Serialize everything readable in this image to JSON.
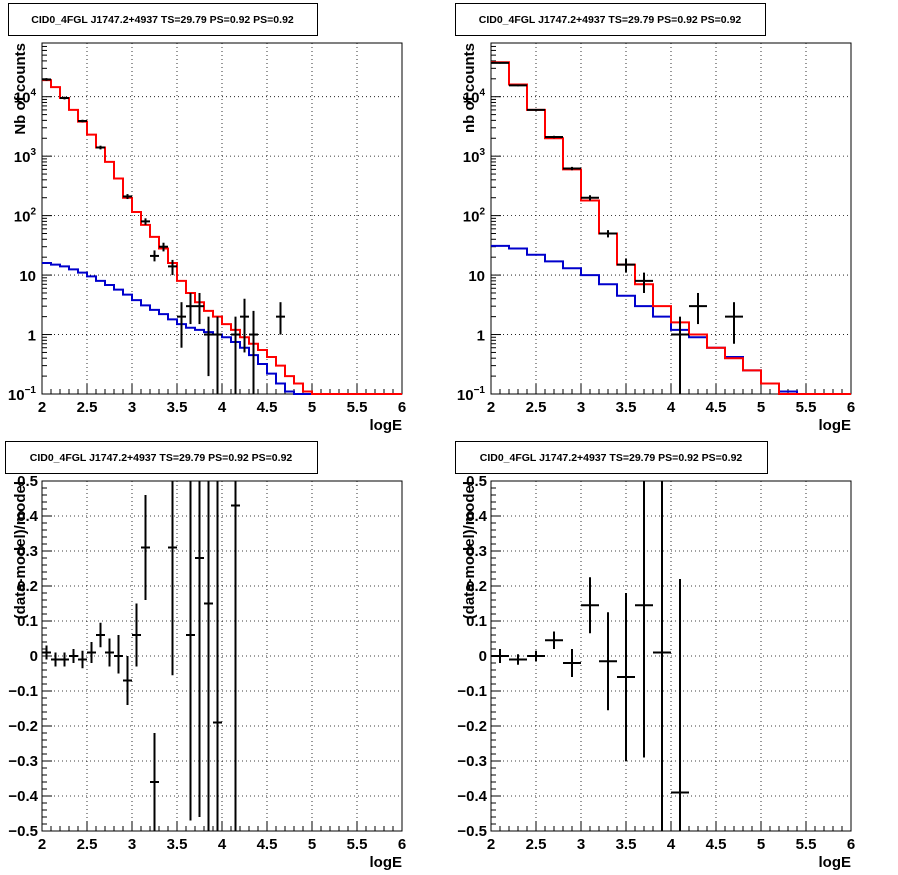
{
  "chart_data": [
    {
      "type": "line",
      "title": "CID0_4FGL J1747.2+4937 TS=29.79 PS=0.92 PS=0.92",
      "xlabel": "logE",
      "ylabel": "Nb of counts",
      "yscale": "log",
      "xlim": [
        2,
        6
      ],
      "ylim": [
        0.1,
        80000
      ],
      "grid": true,
      "xticks": [
        "2",
        "2.5",
        "3",
        "3.5",
        "4",
        "4.5",
        "5",
        "5.5",
        "6"
      ],
      "yticks": [
        {
          "value": 0.1,
          "base": "10",
          "exp": "−1"
        },
        {
          "value": 1,
          "base": "1",
          "exp": ""
        },
        {
          "value": 10,
          "base": "10",
          "exp": ""
        },
        {
          "value": 100,
          "base": "10",
          "exp": "2"
        },
        {
          "value": 1000,
          "base": "10",
          "exp": "3"
        },
        {
          "value": 10000,
          "base": "10",
          "exp": "4"
        }
      ],
      "bin_width": 0.1,
      "series": [
        {
          "color": "#ff0000",
          "step_edges": [
            2.0,
            2.1,
            2.2,
            2.3,
            2.4,
            2.5,
            2.6,
            2.7,
            2.8,
            2.9,
            3.0,
            3.1,
            3.2,
            3.3,
            3.4,
            3.5,
            3.6,
            3.7,
            3.8,
            3.9,
            4.0,
            4.1,
            4.2,
            4.3,
            4.4,
            4.5,
            4.6,
            4.7,
            4.8,
            4.9,
            5.0,
            5.1,
            5.2,
            5.3,
            5.4,
            5.5,
            5.6,
            5.7,
            5.8,
            5.9,
            6.0
          ],
          "values": [
            19000,
            14500,
            9500,
            6000,
            3800,
            2300,
            1400,
            800,
            420,
            200,
            115,
            70,
            44,
            28,
            16,
            8,
            5,
            3.5,
            2.5,
            2.0,
            1.5,
            1.2,
            0.9,
            0.7,
            0.55,
            0.42,
            0.3,
            0.2,
            0.15,
            0.11,
            0.1,
            0.1,
            0.1,
            0.1,
            0.1,
            0.1,
            0.1,
            0.1,
            0.1,
            0.1
          ]
        },
        {
          "color": "#0000cc",
          "step_edges": [
            2.0,
            2.1,
            2.2,
            2.3,
            2.4,
            2.5,
            2.6,
            2.7,
            2.8,
            2.9,
            3.0,
            3.1,
            3.2,
            3.3,
            3.4,
            3.5,
            3.6,
            3.7,
            3.8,
            3.9,
            4.0,
            4.1,
            4.2,
            4.3,
            4.4,
            4.5,
            4.6,
            4.7,
            4.8,
            4.9,
            5.0,
            5.1,
            5.2,
            5.3,
            5.4,
            5.5,
            5.6,
            5.7,
            5.8,
            5.9,
            6.0
          ],
          "values": [
            16,
            15,
            14,
            12.5,
            11,
            9.5,
            8,
            6.8,
            5.7,
            4.7,
            3.8,
            3.1,
            2.6,
            2.2,
            1.8,
            1.5,
            1.3,
            1.2,
            1.1,
            1.0,
            0.9,
            0.75,
            0.6,
            0.45,
            0.32,
            0.22,
            0.15,
            0.11,
            0.1,
            0.1,
            0.1,
            0.1,
            0.1,
            0.1,
            0.1,
            0.1,
            0.1,
            0.1,
            0.1,
            0.1
          ]
        }
      ],
      "points": [
        {
          "x": 2.05,
          "y": 19500,
          "ylow": 18500,
          "yhigh": 20500
        },
        {
          "x": 2.25,
          "y": 9500,
          "ylow": 9000,
          "yhigh": 10000
        },
        {
          "x": 2.45,
          "y": 3900,
          "ylow": 3700,
          "yhigh": 4100
        },
        {
          "x": 2.65,
          "y": 1400,
          "ylow": 1300,
          "yhigh": 1500
        },
        {
          "x": 2.95,
          "y": 210,
          "ylow": 190,
          "yhigh": 230
        },
        {
          "x": 3.15,
          "y": 80,
          "ylow": 70,
          "yhigh": 90
        },
        {
          "x": 3.25,
          "y": 21,
          "ylow": 17,
          "yhigh": 26
        },
        {
          "x": 3.35,
          "y": 30,
          "ylow": 25,
          "yhigh": 35
        },
        {
          "x": 3.45,
          "y": 14,
          "ylow": 10,
          "yhigh": 18
        },
        {
          "x": 3.55,
          "y": 2,
          "ylow": 0.6,
          "yhigh": 3.5
        },
        {
          "x": 3.65,
          "y": 3,
          "ylow": 1.5,
          "yhigh": 5
        },
        {
          "x": 3.75,
          "y": 3,
          "ylow": 1.5,
          "yhigh": 5
        },
        {
          "x": 3.85,
          "y": 1,
          "ylow": 0.2,
          "yhigh": 2
        },
        {
          "x": 3.95,
          "y": 1,
          "ylow": 0.1,
          "yhigh": 2
        },
        {
          "x": 4.15,
          "y": 1,
          "ylow": 0.1,
          "yhigh": 2
        },
        {
          "x": 4.25,
          "y": 2,
          "ylow": 0.5,
          "yhigh": 4
        },
        {
          "x": 4.35,
          "y": 1,
          "ylow": 0.1,
          "yhigh": 2.5
        },
        {
          "x": 4.65,
          "y": 2,
          "ylow": 1,
          "yhigh": 3.5
        }
      ]
    },
    {
      "type": "line",
      "title": "CID0_4FGL J1747.2+4937 TS=29.79 PS=0.92 PS=0.92",
      "xlabel": "logE",
      "ylabel": "nb of counts",
      "yscale": "log",
      "xlim": [
        2,
        6
      ],
      "ylim": [
        0.1,
        80000
      ],
      "grid": true,
      "xticks": [
        "2",
        "2.5",
        "3",
        "3.5",
        "4",
        "4.5",
        "5",
        "5.5",
        "6"
      ],
      "yticks": [
        {
          "value": 0.1,
          "base": "10",
          "exp": "−1"
        },
        {
          "value": 1,
          "base": "1",
          "exp": ""
        },
        {
          "value": 10,
          "base": "10",
          "exp": ""
        },
        {
          "value": 100,
          "base": "10",
          "exp": "2"
        },
        {
          "value": 1000,
          "base": "10",
          "exp": "3"
        },
        {
          "value": 10000,
          "base": "10",
          "exp": "4"
        }
      ],
      "bin_width": 0.2,
      "series": [
        {
          "color": "#ff0000",
          "step_edges": [
            2.0,
            2.2,
            2.4,
            2.6,
            2.8,
            3.0,
            3.2,
            3.4,
            3.6,
            3.8,
            4.0,
            4.2,
            4.4,
            4.6,
            4.8,
            5.0,
            5.2,
            5.4,
            5.6,
            5.8,
            6.0
          ],
          "values": [
            38000,
            16000,
            6000,
            2000,
            600,
            180,
            50,
            15,
            7,
            3,
            1.6,
            1.0,
            0.6,
            0.4,
            0.25,
            0.15,
            0.1,
            0.1,
            0.1,
            0.1
          ]
        },
        {
          "color": "#0000cc",
          "step_edges": [
            2.0,
            2.2,
            2.4,
            2.6,
            2.8,
            3.0,
            3.2,
            3.4,
            3.6,
            3.8,
            4.0,
            4.2,
            4.4,
            4.6,
            4.8,
            5.0,
            5.2,
            5.4,
            5.6,
            5.8,
            6.0
          ],
          "values": [
            31,
            28,
            22,
            17,
            13,
            10,
            7,
            4.5,
            3,
            2,
            1.2,
            0.9,
            0.6,
            0.42,
            0.25,
            0.15,
            0.11,
            0.1,
            0.1,
            0.1
          ]
        }
      ],
      "points": [
        {
          "x": 2.1,
          "y": 37000,
          "ylow": 36000,
          "yhigh": 38000
        },
        {
          "x": 2.3,
          "y": 15500,
          "ylow": 15000,
          "yhigh": 16000
        },
        {
          "x": 2.5,
          "y": 6000,
          "ylow": 5800,
          "yhigh": 6200
        },
        {
          "x": 2.7,
          "y": 2100,
          "ylow": 2000,
          "yhigh": 2200
        },
        {
          "x": 2.9,
          "y": 620,
          "ylow": 580,
          "yhigh": 660
        },
        {
          "x": 3.1,
          "y": 200,
          "ylow": 180,
          "yhigh": 220
        },
        {
          "x": 3.3,
          "y": 50,
          "ylow": 43,
          "yhigh": 57
        },
        {
          "x": 3.5,
          "y": 15,
          "ylow": 11,
          "yhigh": 19
        },
        {
          "x": 3.7,
          "y": 8,
          "ylow": 5,
          "yhigh": 11
        },
        {
          "x": 4.1,
          "y": 1,
          "ylow": 0.1,
          "yhigh": 2
        },
        {
          "x": 4.3,
          "y": 3,
          "ylow": 1.5,
          "yhigh": 5
        },
        {
          "x": 4.7,
          "y": 2,
          "ylow": 0.7,
          "yhigh": 3.5
        }
      ]
    },
    {
      "type": "scatter",
      "title": "CID0_4FGL J1747.2+4937 TS=29.79 PS=0.92 PS=0.92",
      "xlabel": "logE",
      "ylabel": "(data-model)/model",
      "xlim": [
        2,
        6
      ],
      "ylim": [
        -0.5,
        0.5
      ],
      "grid": true,
      "xticks": [
        "2",
        "2.5",
        "3",
        "3.5",
        "4",
        "4.5",
        "5",
        "5.5",
        "6"
      ],
      "yticks": [
        "−0.5",
        "−0.4",
        "−0.3",
        "−0.2",
        "−0.1",
        "0",
        "0.1",
        "0.2",
        "0.3",
        "0.4",
        "0.5"
      ],
      "ytick_values": [
        -0.5,
        -0.4,
        -0.3,
        -0.2,
        -0.1,
        0,
        0.1,
        0.2,
        0.3,
        0.4,
        0.5
      ],
      "bin_width": 0.1,
      "points": [
        {
          "x": 2.05,
          "y": 0.01,
          "ylow": -0.01,
          "yhigh": 0.03
        },
        {
          "x": 2.15,
          "y": -0.01,
          "ylow": -0.03,
          "yhigh": 0.01
        },
        {
          "x": 2.25,
          "y": -0.01,
          "ylow": -0.03,
          "yhigh": 0.01
        },
        {
          "x": 2.35,
          "y": 0.0,
          "ylow": -0.02,
          "yhigh": 0.02
        },
        {
          "x": 2.45,
          "y": -0.01,
          "ylow": -0.035,
          "yhigh": 0.015
        },
        {
          "x": 2.55,
          "y": 0.01,
          "ylow": -0.02,
          "yhigh": 0.04
        },
        {
          "x": 2.65,
          "y": 0.06,
          "ylow": 0.025,
          "yhigh": 0.095
        },
        {
          "x": 2.75,
          "y": 0.01,
          "ylow": -0.03,
          "yhigh": 0.05
        },
        {
          "x": 2.85,
          "y": 0.0,
          "ylow": -0.05,
          "yhigh": 0.06
        },
        {
          "x": 2.95,
          "y": -0.07,
          "ylow": -0.14,
          "yhigh": 0.0
        },
        {
          "x": 3.05,
          "y": 0.06,
          "ylow": -0.03,
          "yhigh": 0.15
        },
        {
          "x": 3.15,
          "y": 0.31,
          "ylow": 0.16,
          "yhigh": 0.46
        },
        {
          "x": 3.25,
          "y": -0.36,
          "ylow": -0.5,
          "yhigh": -0.22
        },
        {
          "x": 3.45,
          "y": 0.31,
          "ylow": -0.055,
          "yhigh": 0.5
        },
        {
          "x": 3.65,
          "y": 0.06,
          "ylow": -0.47,
          "yhigh": 0.5
        },
        {
          "x": 3.75,
          "y": 0.28,
          "ylow": -0.46,
          "yhigh": 0.5
        },
        {
          "x": 3.85,
          "y": 0.15,
          "ylow": -0.5,
          "yhigh": 0.5
        },
        {
          "x": 3.95,
          "y": -0.19,
          "ylow": -0.5,
          "yhigh": 0.5
        },
        {
          "x": 4.15,
          "y": 0.43,
          "ylow": -0.5,
          "yhigh": 0.5
        }
      ]
    },
    {
      "type": "scatter",
      "title": "CID0_4FGL J1747.2+4937 TS=29.79 PS=0.92 PS=0.92",
      "xlabel": "logE",
      "ylabel": "(data-model)/model",
      "xlim": [
        2,
        6
      ],
      "ylim": [
        -0.5,
        0.5
      ],
      "grid": true,
      "xticks": [
        "2",
        "2.5",
        "3",
        "3.5",
        "4",
        "4.5",
        "5",
        "5.5",
        "6"
      ],
      "yticks": [
        "−0.5",
        "−0.4",
        "−0.3",
        "−0.2",
        "−0.1",
        "0",
        "0.1",
        "0.2",
        "0.3",
        "0.4",
        "0.5"
      ],
      "ytick_values": [
        -0.5,
        -0.4,
        -0.3,
        -0.2,
        -0.1,
        0,
        0.1,
        0.2,
        0.3,
        0.4,
        0.5
      ],
      "bin_width": 0.2,
      "points": [
        {
          "x": 2.1,
          "y": 0.0,
          "ylow": -0.02,
          "yhigh": 0.02
        },
        {
          "x": 2.3,
          "y": -0.01,
          "ylow": -0.025,
          "yhigh": 0.005
        },
        {
          "x": 2.5,
          "y": 0.0,
          "ylow": -0.015,
          "yhigh": 0.015
        },
        {
          "x": 2.7,
          "y": 0.045,
          "ylow": 0.02,
          "yhigh": 0.07
        },
        {
          "x": 2.9,
          "y": -0.02,
          "ylow": -0.06,
          "yhigh": 0.02
        },
        {
          "x": 3.1,
          "y": 0.145,
          "ylow": 0.065,
          "yhigh": 0.225
        },
        {
          "x": 3.3,
          "y": -0.015,
          "ylow": -0.155,
          "yhigh": 0.125
        },
        {
          "x": 3.5,
          "y": -0.06,
          "ylow": -0.3,
          "yhigh": 0.18
        },
        {
          "x": 3.7,
          "y": 0.145,
          "ylow": -0.29,
          "yhigh": 0.5
        },
        {
          "x": 3.9,
          "y": 0.01,
          "ylow": -0.5,
          "yhigh": 0.5
        },
        {
          "x": 4.1,
          "y": -0.39,
          "ylow": -0.5,
          "yhigh": 0.22
        }
      ]
    }
  ]
}
